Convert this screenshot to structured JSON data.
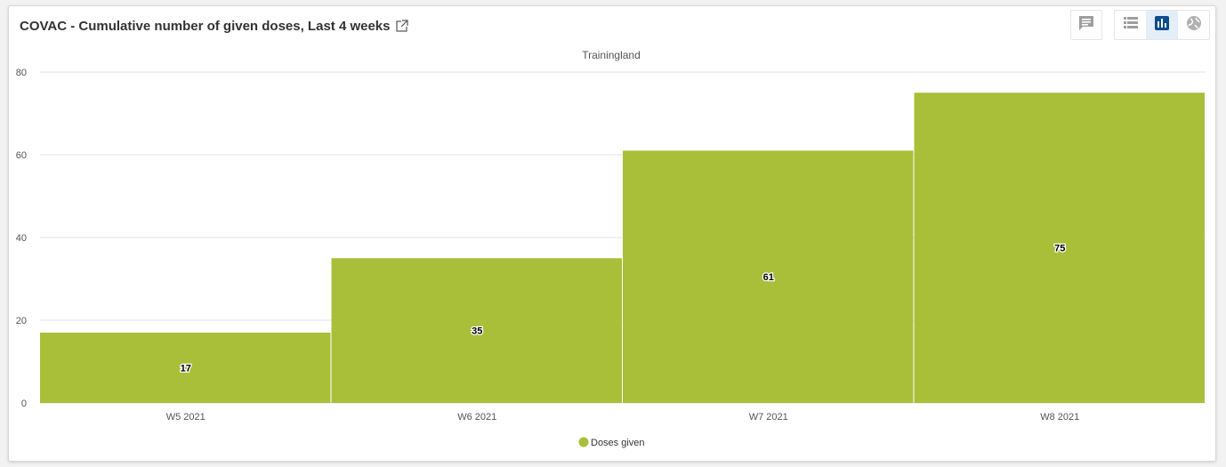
{
  "header": {
    "title": "COVAC - Cumulative number of given doses, Last 4 weeks"
  },
  "icons": {
    "external": "external-link-icon",
    "comment": "comment-icon",
    "table": "table-view-icon",
    "chart": "chart-view-icon",
    "map": "map-view-icon"
  },
  "colors": {
    "bar": "#a9bf3a",
    "active_view": "#0d4b8e",
    "icon_gray": "#9e9e9e"
  },
  "chart_data": {
    "type": "bar",
    "title": "Trainingland",
    "categories": [
      "W5 2021",
      "W6 2021",
      "W7 2021",
      "W8 2021"
    ],
    "series": [
      {
        "name": "Doses given",
        "values": [
          17,
          35,
          61,
          75
        ]
      }
    ],
    "ylim": [
      0,
      80
    ],
    "yticks": [
      0,
      20,
      40,
      60,
      80
    ],
    "xlabel": "",
    "ylabel": "",
    "grid": true,
    "legend": "bottom-center"
  }
}
